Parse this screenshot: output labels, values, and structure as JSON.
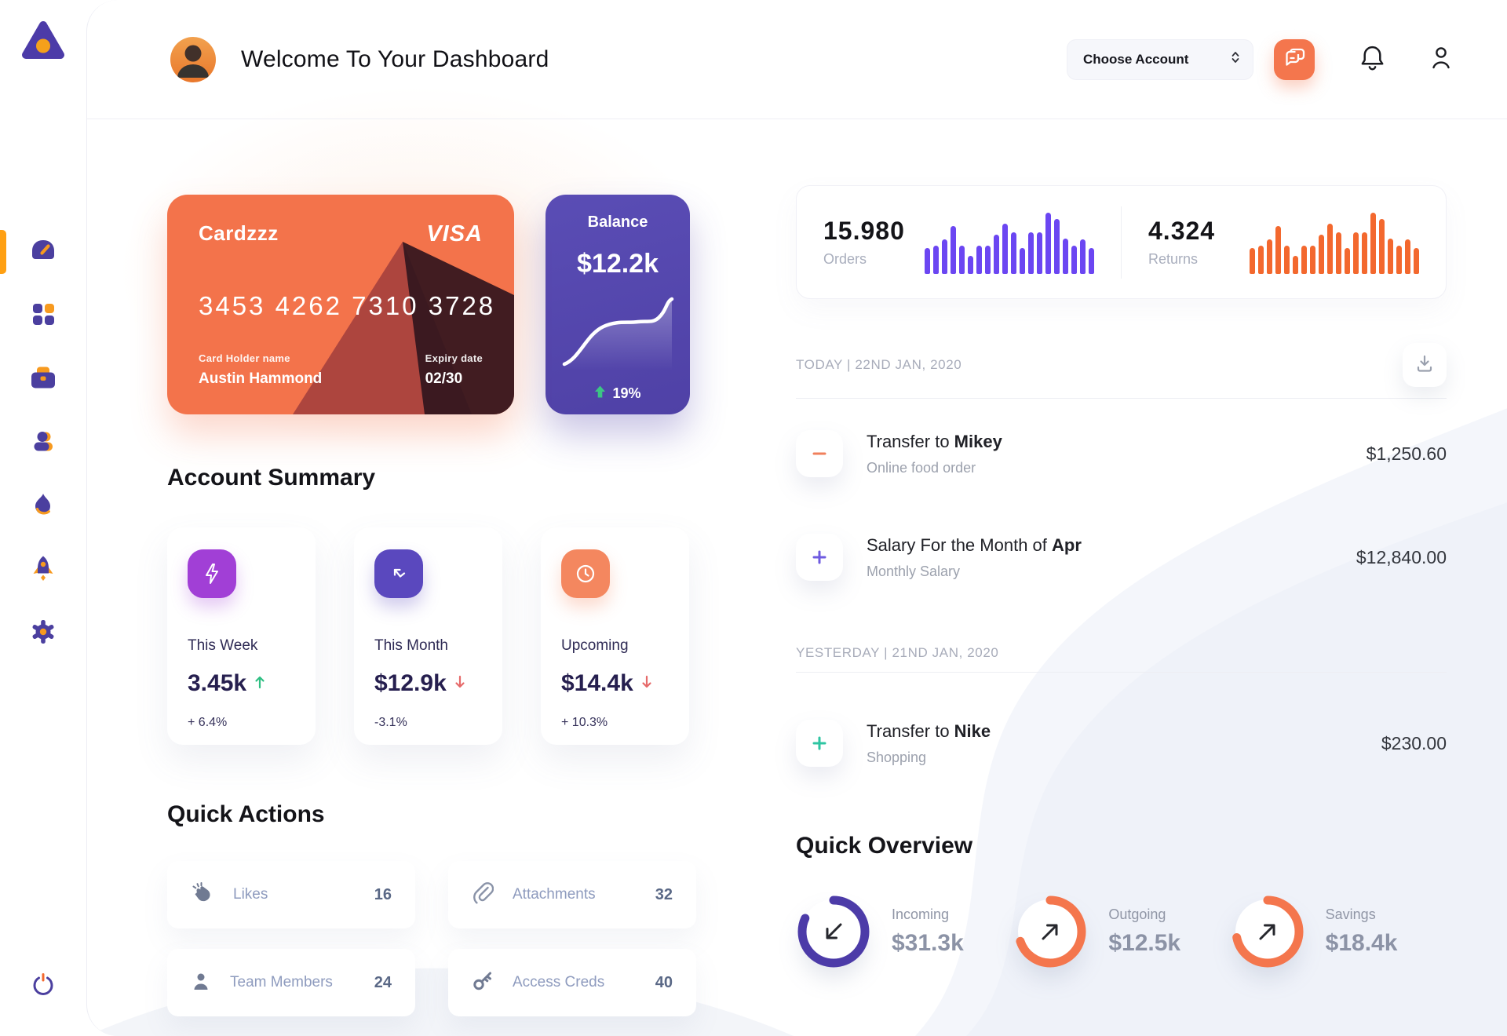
{
  "header": {
    "title": "Welcome To Your Dashboard",
    "account_select_label": "Choose Account",
    "icons": {
      "chat": "chat-icon",
      "notifications": "bell-icon",
      "profile": "user-icon"
    }
  },
  "sidebar": {
    "logo": "triangle-logo",
    "nav_icons": [
      "speedometer-icon",
      "grid-icon",
      "briefcase-icon",
      "user-icon",
      "flame-icon",
      "rocket-icon",
      "gear-icon"
    ],
    "active_index": 0,
    "power": "power-icon"
  },
  "credit_card": {
    "name": "Cardzzz",
    "brand": "VISA",
    "number": "3453 4262 7310 3728",
    "holder_label": "Card Holder name",
    "holder_name": "Austin Hammond",
    "expiry_label": "Expiry date",
    "expiry": "02/30"
  },
  "balance_card": {
    "title": "Balance",
    "amount": "$12.2k",
    "change": "19%"
  },
  "stats": {
    "orders": {
      "value": "15.980",
      "label": "Orders"
    },
    "returns": {
      "value": "4.324",
      "label": "Returns"
    }
  },
  "account_summary": {
    "title": "Account Summary",
    "cards": [
      {
        "icon": "lightning-icon",
        "label": "This Week",
        "value": "3.45k",
        "trend": "up",
        "delta": "+ 6.4%"
      },
      {
        "icon": "arrow-trend-icon",
        "label": "This Month",
        "value": "$12.9k",
        "trend": "down",
        "delta": "-3.1%"
      },
      {
        "icon": "clock-icon",
        "label": "Upcoming",
        "value": "$14.4k",
        "trend": "down",
        "delta": "+ 10.3%"
      }
    ]
  },
  "quick_actions": {
    "title": "Quick Actions",
    "items": [
      {
        "icon": "clap-icon",
        "label": "Likes",
        "count": "16"
      },
      {
        "icon": "paperclip-icon",
        "label": "Attachments",
        "count": "32"
      },
      {
        "icon": "member-icon",
        "label": "Team Members",
        "count": "24"
      },
      {
        "icon": "key-icon",
        "label": "Access Creds",
        "count": "40"
      }
    ]
  },
  "transactions": {
    "today_header": "TODAY | 22ND JAN, 2020",
    "yesterday_header": "YESTERDAY | 21ND JAN, 2020",
    "download_icon": "download-icon",
    "rows": [
      {
        "title_prefix": "Transfer to ",
        "title_bold": "Mikey",
        "subtitle": "Online food order",
        "amount": "$1,250.60",
        "sign": "minus",
        "sign_color": "#F0805C"
      },
      {
        "title_prefix": "Salary For the Month of ",
        "title_bold": "Apr",
        "subtitle": "Monthly Salary",
        "amount": "$12,840.00",
        "sign": "plus",
        "sign_color": "#6F5BE0"
      },
      {
        "title_prefix": "Transfer to ",
        "title_bold": "Nike",
        "subtitle": "Shopping",
        "amount": "$230.00",
        "sign": "plus",
        "sign_color": "#2EC5A2"
      }
    ]
  },
  "quick_overview": {
    "title": "Quick Overview",
    "items": [
      {
        "label": "Incoming",
        "value": "$31.3k",
        "ring_color": "#4C3BA8",
        "percent": 82,
        "arrow": "down-left"
      },
      {
        "label": "Outgoing",
        "value": "$12.5k",
        "ring_color": "#F4764D",
        "percent": 70,
        "arrow": "up-right"
      },
      {
        "label": "Savings",
        "value": "$18.4k",
        "ring_color": "#F4764D",
        "percent": 72,
        "arrow": "up-right"
      }
    ]
  },
  "chart_data": [
    {
      "type": "bar",
      "name": "orders-sparkline",
      "color": "#6B46F2",
      "values": [
        42,
        46,
        56,
        78,
        46,
        30,
        46,
        46,
        64,
        82,
        68,
        42,
        68,
        68,
        100,
        90,
        58,
        46,
        56,
        42
      ]
    },
    {
      "type": "bar",
      "name": "returns-sparkline",
      "color": "#F3682E",
      "values": [
        42,
        46,
        56,
        78,
        46,
        30,
        46,
        46,
        64,
        82,
        68,
        42,
        68,
        68,
        100,
        90,
        58,
        46,
        56,
        42
      ]
    },
    {
      "type": "line",
      "name": "balance-trend",
      "color": "#FFFFFF",
      "values": [
        12,
        15,
        22,
        38,
        50,
        55,
        57,
        56,
        55,
        57,
        62,
        76,
        88,
        86
      ]
    },
    {
      "type": "donut",
      "name": "quick-overview-rings",
      "values": [
        82,
        70,
        72
      ],
      "labels": [
        "Incoming",
        "Outgoing",
        "Savings"
      ]
    }
  ],
  "colors": {
    "accent_orange": "#F4764D",
    "accent_purple": "#4C3BA8",
    "sparkline_purple": "#6B46F2",
    "sparkline_orange": "#F3682E",
    "positive_green": "#2EC5A2",
    "negative_red": "#E66A6A",
    "sidebar_highlight": "#FFA013"
  }
}
